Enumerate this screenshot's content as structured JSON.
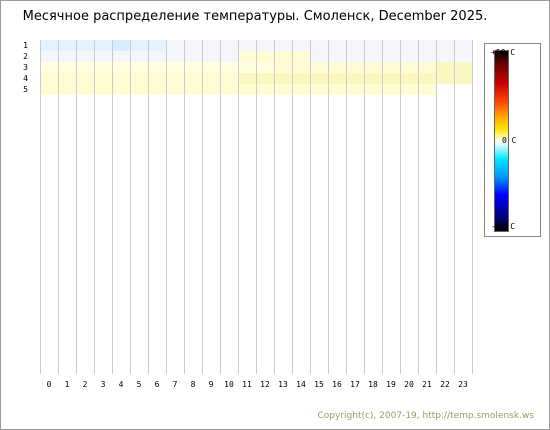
{
  "title": "Месячное распределение температуры. Смоленск, December 2025.",
  "copyright": "Copyright(c), 2007-19, http://temp.smolensk.ws",
  "colors": {
    "grid": "#cccccc",
    "very_light_blue": "#e4f2ff",
    "light_blue": "#d6ecff",
    "near_zero": "#f4f6fc",
    "light_yellow": "#ffffe0",
    "yellow": "#fdfcd2",
    "warmer_yellow": "#fbf7c0"
  },
  "chart_data": {
    "type": "heatmap",
    "title": "Месячное распределение температуры. Смоленск, December 2025.",
    "x_label": "",
    "y_label": "",
    "x_categories": [
      "0",
      "1",
      "2",
      "3",
      "4",
      "5",
      "6",
      "7",
      "8",
      "9",
      "10",
      "11",
      "12",
      "13",
      "14",
      "15",
      "16",
      "17",
      "18",
      "19",
      "20",
      "21",
      "22",
      "23"
    ],
    "y_categories": [
      "1",
      "2",
      "3",
      "4",
      "5"
    ],
    "colorbar": {
      "unit": "C",
      "range": [
        -50,
        50
      ],
      "labels": [
        "+50 C",
        "0 C",
        "-50 C"
      ]
    },
    "rows": [
      {
        "day": "1",
        "values": [
          -1,
          -1,
          -1,
          -1,
          -1.5,
          -1,
          -1,
          -0.5,
          -0.5,
          -0.5,
          -0.5,
          -0.5,
          -0.5,
          -0.5,
          -0.5,
          -0.5,
          -0.5,
          -0.5,
          -0.5,
          -0.5,
          -0.5,
          -0.5,
          -0.5,
          -0.5
        ]
      },
      {
        "day": "2",
        "values": [
          0,
          0,
          0,
          0,
          0,
          0,
          0,
          0,
          0,
          0,
          0,
          1,
          1,
          1,
          1,
          0,
          0,
          0,
          0,
          0,
          0,
          0,
          0,
          0
        ]
      },
      {
        "day": "3",
        "values": [
          0.5,
          0.5,
          0.5,
          0.5,
          0.5,
          0.5,
          0.5,
          0.5,
          0.5,
          0.5,
          0.5,
          0.5,
          0.5,
          1,
          1,
          1,
          1,
          1,
          1,
          1,
          1,
          1.5,
          2,
          2
        ]
      },
      {
        "day": "4",
        "values": [
          1.5,
          1.5,
          1.5,
          1.5,
          1.5,
          1.5,
          1.5,
          1.5,
          1.5,
          1.5,
          1.5,
          2,
          2,
          2,
          2,
          2,
          2,
          2,
          2,
          2,
          2,
          2,
          2,
          2
        ]
      },
      {
        "day": "5",
        "values": [
          1.5,
          1.5,
          1.5,
          1.5,
          1.5,
          1.5,
          1.5,
          1.5,
          1.5,
          1.5,
          1.5,
          1.5,
          1.5,
          1.5,
          1.5,
          1.5,
          1.5,
          1.5,
          1.5,
          1.5,
          1.5,
          1.5,
          null,
          null
        ]
      }
    ]
  }
}
